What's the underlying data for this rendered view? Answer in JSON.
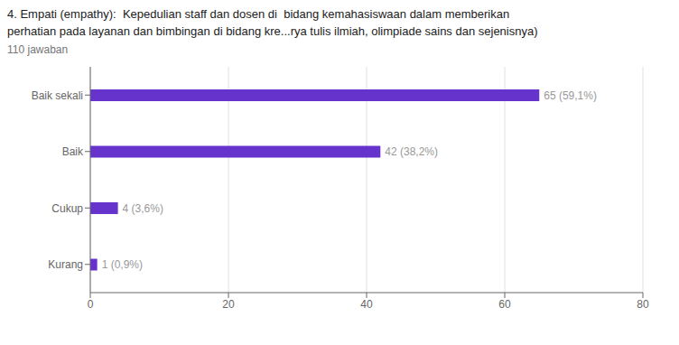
{
  "chart_data": {
    "type": "bar",
    "orientation": "horizontal",
    "title": [
      "4. Empati (empathy):  Kepedulian staff dan dosen di  bidang kemahasiswaan dalam memberikan",
      "perhatian pada layanan dan bimbingan di bidang kre...rya tulis ilmiah, olimpiade sains dan sejenisnya)"
    ],
    "subtitle": "110 jawaban",
    "categories": [
      "Kurang",
      "Cukup",
      "Baik",
      "Baik sekali"
    ],
    "values": [
      1,
      4,
      42,
      65
    ],
    "value_labels": [
      "1 (0,9%)",
      "4 (3,6%)",
      "42 (38,2%)",
      "65 (59,1%)"
    ],
    "color": "#6633cc",
    "xlim": [
      0,
      80
    ],
    "xticks": [
      0,
      20,
      40,
      60,
      80
    ],
    "grid": true,
    "data_labels": true
  }
}
